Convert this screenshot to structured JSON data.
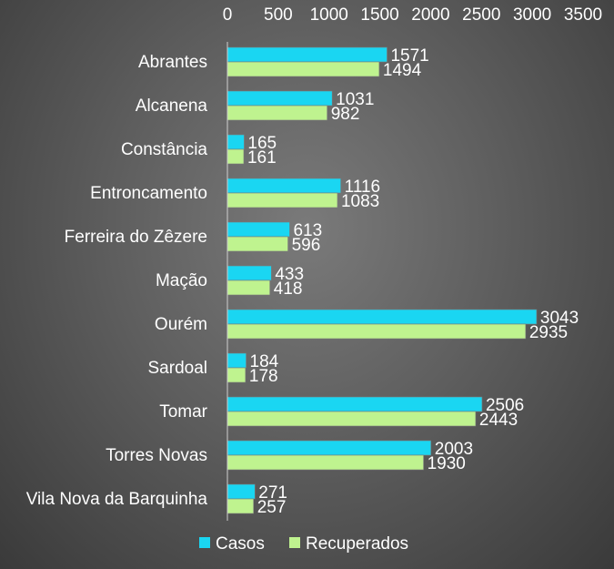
{
  "chart_data": {
    "type": "bar",
    "orientation": "horizontal",
    "categories": [
      "Abrantes",
      "Alcanena",
      "Constância",
      "Entroncamento",
      "Ferreira do Zêzere",
      "Mação",
      "Ourém",
      "Sardoal",
      "Tomar",
      "Torres Novas",
      "Vila Nova da Barquinha"
    ],
    "series": [
      {
        "name": "Casos",
        "color": "#1ad6f2",
        "values": [
          1571,
          1031,
          165,
          1116,
          613,
          433,
          3043,
          184,
          2506,
          2003,
          271
        ]
      },
      {
        "name": "Recuperados",
        "color": "#bff38f",
        "values": [
          1494,
          982,
          161,
          1083,
          596,
          418,
          2935,
          178,
          2443,
          1930,
          257
        ]
      }
    ],
    "xlim": [
      0,
      3500
    ],
    "ticks": [
      "0",
      "500",
      "1000",
      "1500",
      "2000",
      "2500",
      "3000",
      "3500"
    ],
    "tick_values": [
      0,
      500,
      1000,
      1500,
      2000,
      2500,
      3000,
      3500
    ],
    "axis_position": "top",
    "legend": "bottom",
    "grid": false
  }
}
